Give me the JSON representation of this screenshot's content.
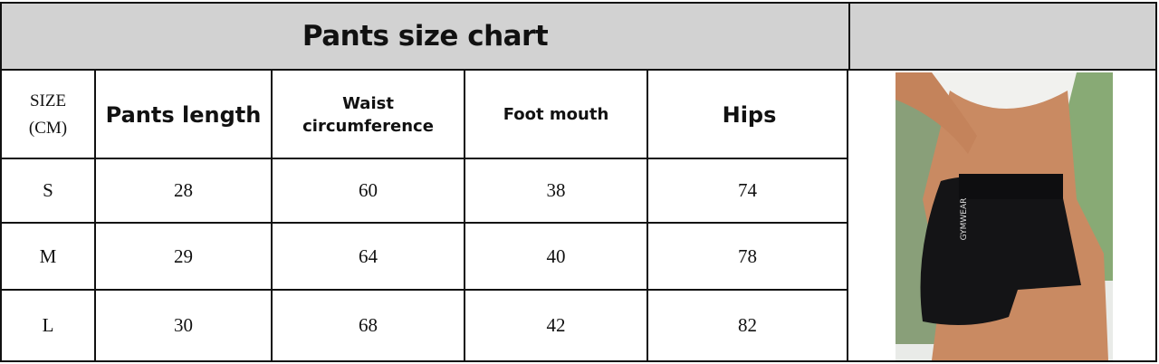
{
  "title": "Pants size chart",
  "table": {
    "size_header": [
      "SIZE",
      "(CM)"
    ],
    "columns": [
      "Pants length",
      "Waist circumference",
      "Foot mouth",
      "Hips"
    ],
    "rows": [
      {
        "size": "S",
        "values": [
          "28",
          "60",
          "38",
          "74"
        ]
      },
      {
        "size": "M",
        "values": [
          "29",
          "64",
          "40",
          "78"
        ]
      },
      {
        "size": "L",
        "values": [
          "30",
          "68",
          "42",
          "82"
        ]
      }
    ]
  },
  "photo": {
    "logo_text": "GYMWEAR"
  },
  "colors": {
    "header_bg": "#d2d2d2",
    "border": "#111111"
  }
}
